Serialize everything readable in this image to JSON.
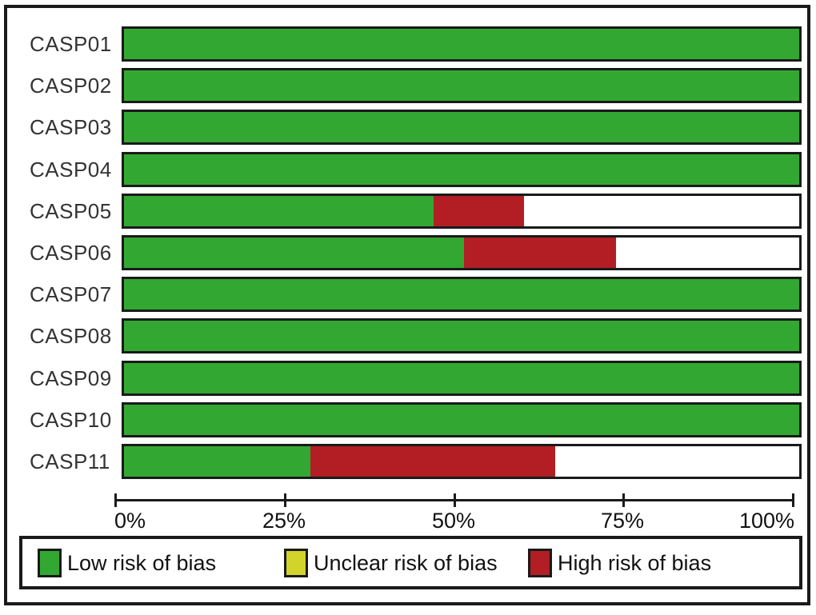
{
  "chart_data": {
    "type": "bar",
    "orientation": "horizontal",
    "stacked": true,
    "title": "",
    "xlabel": "",
    "ylabel": "",
    "xlim": [
      0,
      100
    ],
    "x_ticks": [
      "0%",
      "25%",
      "50%",
      "75%",
      "100%"
    ],
    "grid": false,
    "legend_position": "bottom",
    "categories": [
      "CASP01",
      "CASP02",
      "CASP03",
      "CASP04",
      "CASP05",
      "CASP06",
      "CASP07",
      "CASP08",
      "CASP09",
      "CASP10",
      "CASP11"
    ],
    "series": [
      {
        "key": "low-risk",
        "name": "Low risk of bias",
        "color": "#32A832",
        "values": [
          100,
          100,
          100,
          100,
          45.8,
          50.4,
          100,
          100,
          100,
          100,
          27.6
        ]
      },
      {
        "key": "unclear-risk",
        "name": "Unclear risk of bias",
        "color": "#D2D32B",
        "values": [
          0,
          0,
          0,
          0,
          0,
          0,
          0,
          0,
          0,
          0,
          0
        ]
      },
      {
        "key": "high-risk",
        "name": "High risk of bias",
        "color": "#B21E24",
        "values": [
          0,
          0,
          0,
          0,
          13.5,
          22.5,
          0,
          0,
          0,
          0,
          36.3
        ]
      }
    ]
  },
  "legend": {
    "items": [
      {
        "key": "low-risk",
        "label": "Low risk of bias",
        "color": "#32A832"
      },
      {
        "key": "unclear-risk",
        "label": "Unclear risk of bias",
        "color": "#D2D32B"
      },
      {
        "key": "high-risk",
        "label": "High risk of bias",
        "color": "#B21E24"
      }
    ]
  },
  "colors": {
    "low_risk": "#32A832",
    "unclear_risk": "#D2D32B",
    "high_risk": "#B21E24",
    "border": "#1a1a1a",
    "background": "#ffffff",
    "label_text": "#333333"
  }
}
